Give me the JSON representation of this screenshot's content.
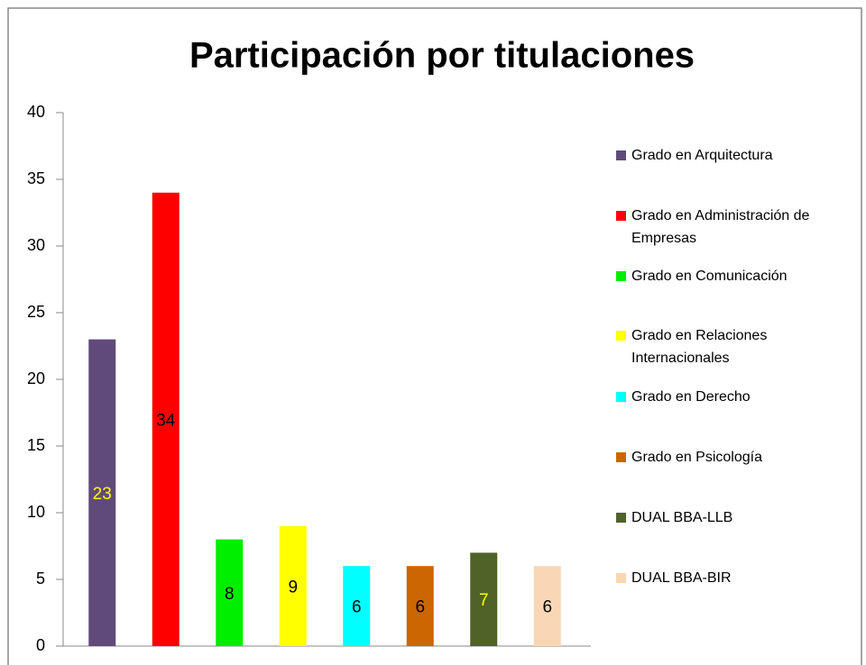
{
  "chart_data": {
    "type": "bar",
    "title": "Participación por titulaciones",
    "series": [
      {
        "name": "Grado en Arquitectura",
        "color": "#604a7b",
        "label_color": "#ffff00",
        "values": [
          23
        ]
      },
      {
        "name": "Grado en Administración de Empresas",
        "color": "#ff0000",
        "label_color": "#000000",
        "values": [
          34
        ]
      },
      {
        "name": "Grado en Comunicación",
        "color": "#00ee00",
        "label_color": "#000000",
        "values": [
          8
        ]
      },
      {
        "name": "Grado en Relaciones Internacionales",
        "color": "#ffff00",
        "label_color": "#000000",
        "values": [
          9
        ]
      },
      {
        "name": "Grado en Derecho",
        "color": "#00ffff",
        "label_color": "#000000",
        "values": [
          6
        ]
      },
      {
        "name": "Grado en Psicología",
        "color": "#cc6600",
        "label_color": "#000000",
        "values": [
          6
        ]
      },
      {
        "name": "DUAL BBA-LLB",
        "color": "#4f6228",
        "label_color": "#ffff00",
        "values": [
          7
        ]
      },
      {
        "name": "DUAL BBA-BIR",
        "color": "#fad7b4",
        "label_color": "#000000",
        "values": [
          6
        ]
      }
    ],
    "ylim": [
      0,
      40
    ],
    "yticks": [
      0,
      5,
      10,
      15,
      20,
      25,
      30,
      35,
      40
    ],
    "grid": false,
    "legend": "right"
  }
}
